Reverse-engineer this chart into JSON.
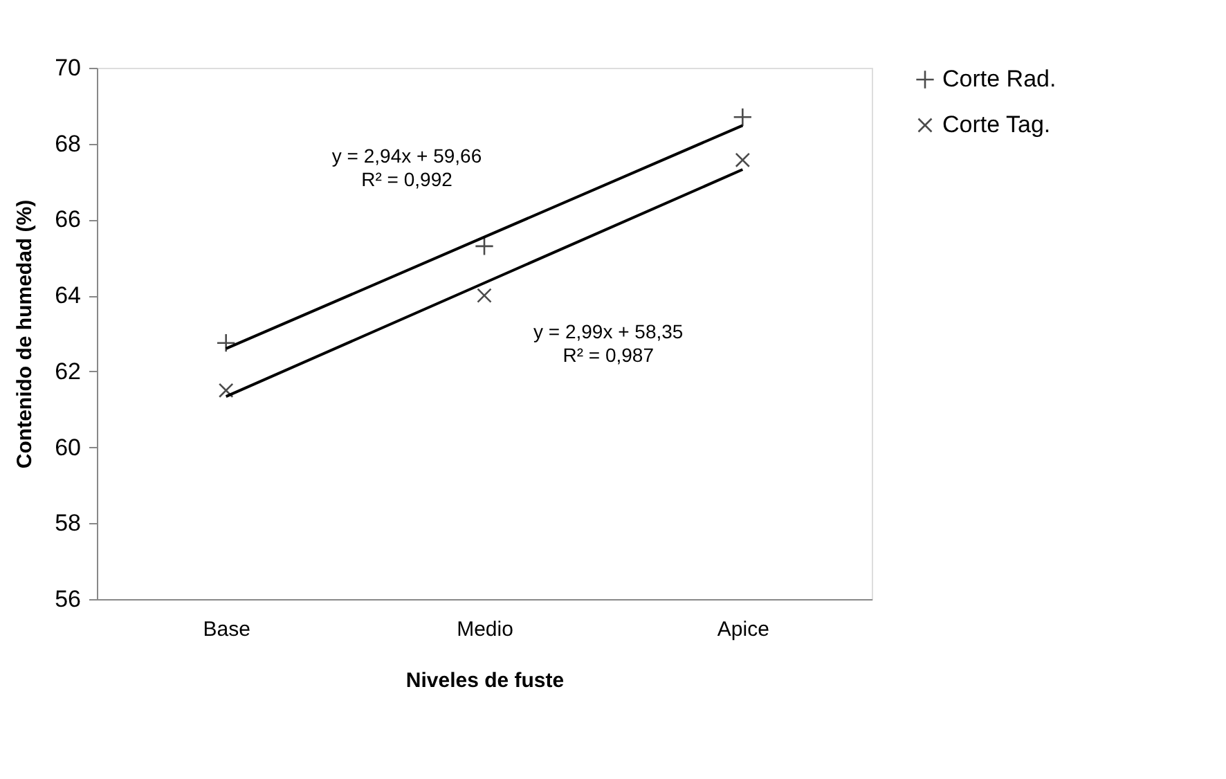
{
  "chart_data": {
    "type": "scatter",
    "xlabel": "Niveles de fuste",
    "ylabel": "Contenido de humedad (%)",
    "categories": [
      "Base",
      "Medio",
      "Apice"
    ],
    "series": [
      {
        "name": "Corte Rad.",
        "color": "#000000",
        "marker": "cross",
        "values": [
          62.75,
          65.3,
          68.7
        ]
      },
      {
        "name": "Corte Tag.",
        "color": "#000000",
        "marker": "x",
        "values": [
          61.5,
          64.0,
          67.57
        ]
      },
      {
        "type": "line",
        "color": "#000000",
        "marker": "none",
        "line_style": "solid",
        "x": [
          "Base",
          "Medio",
          "Apice"
        ],
        "values": [
          62.6,
          65.54,
          68.48
        ]
      },
      {
        "type": "line",
        "color": "#000000",
        "marker": "none",
        "line_style": "solid",
        "x": [
          "Base",
          "Medio",
          "Apice"
        ],
        "values": [
          61.34,
          64.33,
          67.32
        ]
      }
    ],
    "annotations": [
      "y = 2,94x + 59,66\nR² = 0,992",
      "y = 2,99x + 58,35\nR² = 0,987"
    ],
    "ylim": [
      56,
      70
    ],
    "yticks": [
      56,
      58,
      60,
      62,
      64,
      66,
      68,
      70
    ],
    "grid": false,
    "legend": "right"
  }
}
